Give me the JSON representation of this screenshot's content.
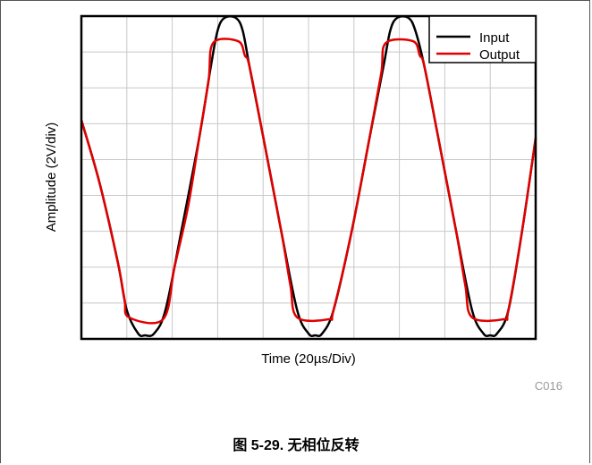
{
  "figure": {
    "caption": "图 5-29. 无相位反转",
    "image_code": "C016"
  },
  "colors": {
    "input": "#000000",
    "output": "#e00000",
    "grid": "#c8c8c8"
  },
  "chart_data": {
    "type": "line",
    "title": "",
    "xlabel": "Time (20µs/Div)",
    "ylabel": "Amplitude (2V/div)",
    "xlim": [
      0,
      10
    ],
    "ylim": [
      0,
      9
    ],
    "grid": true,
    "legend_position": "top-right",
    "legend": [
      "Input",
      "Output"
    ],
    "series": [
      {
        "name": "Input",
        "color": "#000000",
        "points": [
          [
            0,
            6.1
          ],
          [
            0.4,
            4.35
          ],
          [
            0.8,
            2.15
          ],
          [
            1.0,
            0.8
          ],
          [
            1.25,
            0.15
          ],
          [
            1.4,
            0.1
          ],
          [
            1.6,
            0.15
          ],
          [
            1.85,
            0.8
          ],
          [
            2.2,
            3.0
          ],
          [
            2.6,
            5.65
          ],
          [
            2.85,
            7.6
          ],
          [
            3.0,
            8.6
          ],
          [
            3.15,
            8.95
          ],
          [
            3.4,
            8.95
          ],
          [
            3.55,
            8.6
          ],
          [
            3.7,
            7.6
          ],
          [
            4.0,
            5.65
          ],
          [
            4.4,
            3.0
          ],
          [
            4.75,
            0.8
          ],
          [
            5.0,
            0.15
          ],
          [
            5.15,
            0.1
          ],
          [
            5.3,
            0.15
          ],
          [
            5.55,
            0.8
          ],
          [
            5.95,
            3.0
          ],
          [
            6.35,
            5.65
          ],
          [
            6.65,
            7.6
          ],
          [
            6.8,
            8.6
          ],
          [
            6.95,
            8.95
          ],
          [
            7.2,
            8.95
          ],
          [
            7.35,
            8.6
          ],
          [
            7.55,
            7.6
          ],
          [
            7.85,
            5.65
          ],
          [
            8.25,
            3.0
          ],
          [
            8.6,
            0.8
          ],
          [
            8.85,
            0.15
          ],
          [
            9.0,
            0.1
          ],
          [
            9.15,
            0.15
          ],
          [
            9.4,
            0.8
          ],
          [
            9.7,
            3.0
          ],
          [
            10.0,
            5.6
          ]
        ]
      },
      {
        "name": "Output",
        "color": "#e00000",
        "points": [
          [
            0,
            6.1
          ],
          [
            0.4,
            4.35
          ],
          [
            0.8,
            2.15
          ],
          [
            0.95,
            1.1
          ],
          [
            1.05,
            0.6
          ],
          [
            1.8,
            0.55
          ],
          [
            2.05,
            2.0
          ],
          [
            2.35,
            3.7
          ],
          [
            2.6,
            5.65
          ],
          [
            2.8,
            7.2
          ],
          [
            2.9,
            8.25
          ],
          [
            3.45,
            8.3
          ],
          [
            3.6,
            7.9
          ],
          [
            3.7,
            7.6
          ],
          [
            4.0,
            5.65
          ],
          [
            4.4,
            3.0
          ],
          [
            4.6,
            1.5
          ],
          [
            4.75,
            0.6
          ],
          [
            5.45,
            0.55
          ],
          [
            5.55,
            0.8
          ],
          [
            5.95,
            3.0
          ],
          [
            6.35,
            5.65
          ],
          [
            6.6,
            7.4
          ],
          [
            6.7,
            8.25
          ],
          [
            7.3,
            8.3
          ],
          [
            7.45,
            7.9
          ],
          [
            7.55,
            7.6
          ],
          [
            7.85,
            5.65
          ],
          [
            8.25,
            3.0
          ],
          [
            8.45,
            1.5
          ],
          [
            8.6,
            0.6
          ],
          [
            9.3,
            0.55
          ],
          [
            9.4,
            0.8
          ],
          [
            9.7,
            3.0
          ],
          [
            10.0,
            5.6
          ]
        ]
      }
    ]
  }
}
